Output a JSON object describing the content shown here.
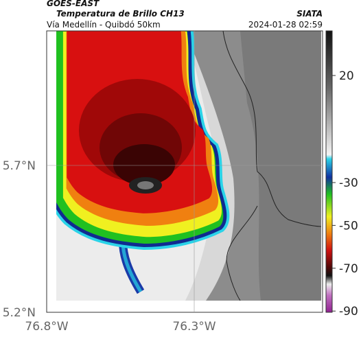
{
  "header": {
    "title": "GOES-EAST",
    "subtitle": "Temperatura de Brillo CH13",
    "route": "Vía Medellín - Quibdó 50km",
    "source": "SIATA",
    "timestamp": "2024-01-28 02:59"
  },
  "map": {
    "yticks": [
      "5.7°N",
      "5.2°N"
    ],
    "xticks": [
      "76.8°W",
      "76.3°W"
    ]
  },
  "colorbar": {
    "ticks": [
      20,
      -30,
      -50,
      -70,
      -90
    ]
  }
}
